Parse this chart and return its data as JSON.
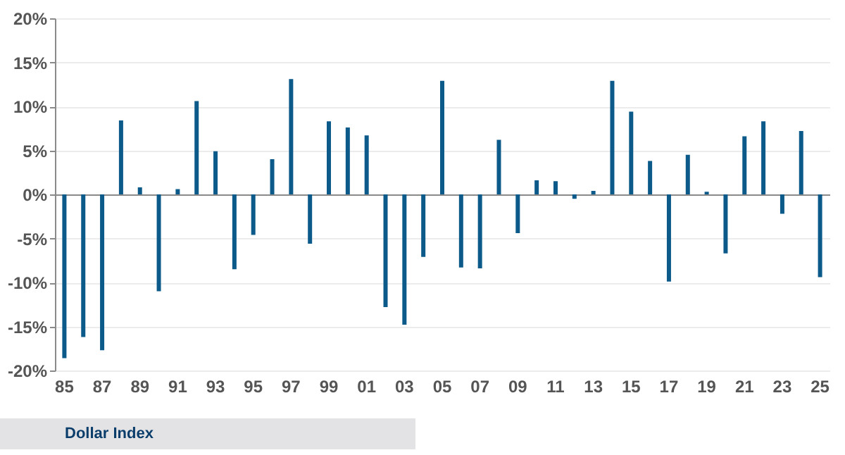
{
  "chart_data": {
    "type": "bar",
    "categories": [
      "85",
      null,
      "87",
      null,
      "89",
      null,
      "91",
      null,
      "93",
      null,
      "95",
      null,
      "97",
      null,
      "99",
      null,
      "01",
      null,
      "03",
      null,
      "05",
      null,
      "07",
      null,
      "09",
      null,
      "11",
      null,
      "13",
      null,
      "15",
      null,
      "17",
      null,
      "19",
      null,
      "21",
      null,
      "23",
      null,
      "25"
    ],
    "values": [
      -18.6,
      -16.2,
      -17.7,
      8.4,
      0.8,
      -11.0,
      0.6,
      10.6,
      4.9,
      -8.5,
      -4.6,
      4.0,
      13.1,
      -5.6,
      8.3,
      7.6,
      6.7,
      -12.8,
      -14.8,
      -7.1,
      12.9,
      -8.3,
      -8.4,
      6.2,
      -4.4,
      1.6,
      1.5,
      -0.5,
      0.4,
      12.9,
      9.4,
      3.8,
      -9.9,
      4.5,
      0.3,
      -6.7,
      6.6,
      8.3,
      -2.2,
      7.2,
      -9.4
    ],
    "color": "#0b5a8a",
    "ylim": [
      -20,
      20
    ],
    "yticks": [
      {
        "value": -20,
        "label": "-20%"
      },
      {
        "value": -15,
        "label": "-15%"
      },
      {
        "value": -10,
        "label": "-10%"
      },
      {
        "value": -5,
        "label": "-5%"
      },
      {
        "value": 0,
        "label": "0%"
      },
      {
        "value": 5,
        "label": "5%"
      },
      {
        "value": 10,
        "label": "10%"
      },
      {
        "value": 15,
        "label": "15%"
      },
      {
        "value": 20,
        "label": "20%"
      }
    ],
    "grid": "y",
    "annotations": [
      "Dollar Index"
    ]
  }
}
